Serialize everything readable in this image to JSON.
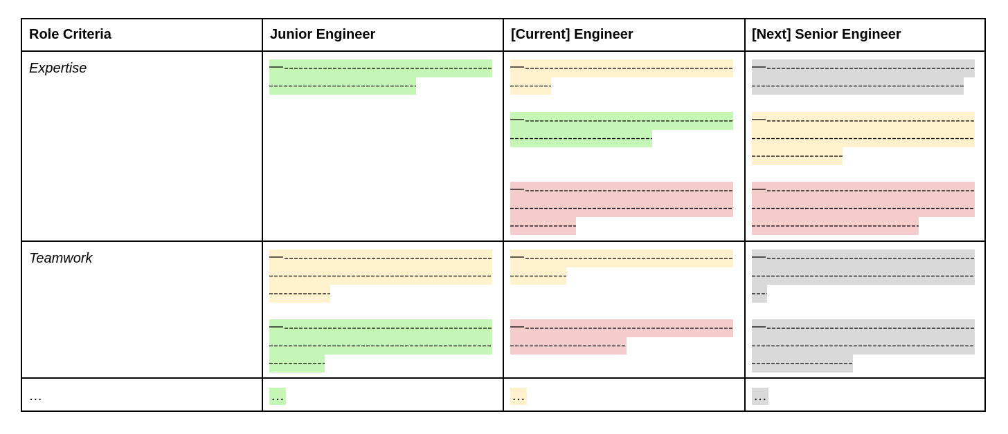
{
  "headers": [
    "Role Criteria",
    "Junior Engineer",
    "[Current] Engineer",
    "[Next] Senior Engineer"
  ],
  "criteria": [
    "Expertise",
    "Teamwork",
    "…"
  ],
  "highlight_colors": {
    "green": "#c6f6b6",
    "yellow": "#fff2cc",
    "red": "#f4cccc",
    "gray": "#d9d9d9"
  },
  "ellipsis_cells": [
    "…",
    "…",
    "…"
  ]
}
